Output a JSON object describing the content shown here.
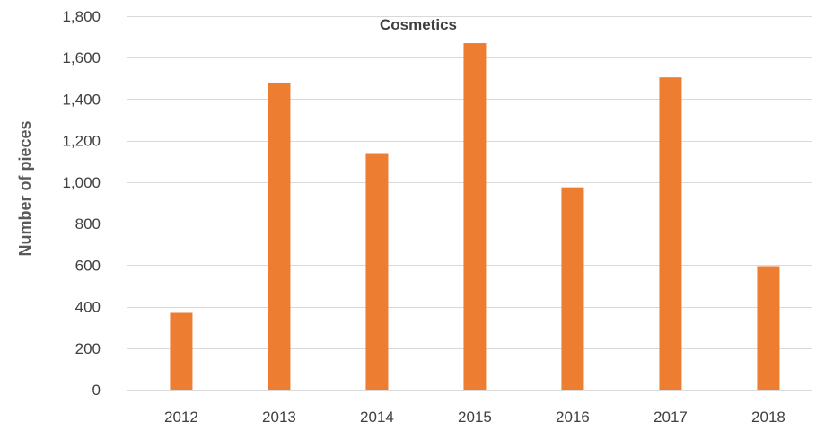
{
  "chart_data": {
    "type": "bar",
    "title": "Cosmetics",
    "xlabel": "",
    "ylabel": "Number of pieces",
    "categories": [
      "2012",
      "2013",
      "2014",
      "2015",
      "2016",
      "2017",
      "2018"
    ],
    "values": [
      370,
      1480,
      1140,
      1670,
      975,
      1505,
      595
    ],
    "ylim": [
      0,
      1800
    ],
    "yticks": [
      0,
      200,
      400,
      600,
      800,
      1000,
      1200,
      1400,
      1600,
      1800
    ],
    "ytick_labels": [
      "0",
      "200",
      "400",
      "600",
      "800",
      "1,000",
      "1,200",
      "1,400",
      "1,600",
      "1,800"
    ],
    "grid": true,
    "legend": "none",
    "bar_color": "#ed7d31"
  }
}
